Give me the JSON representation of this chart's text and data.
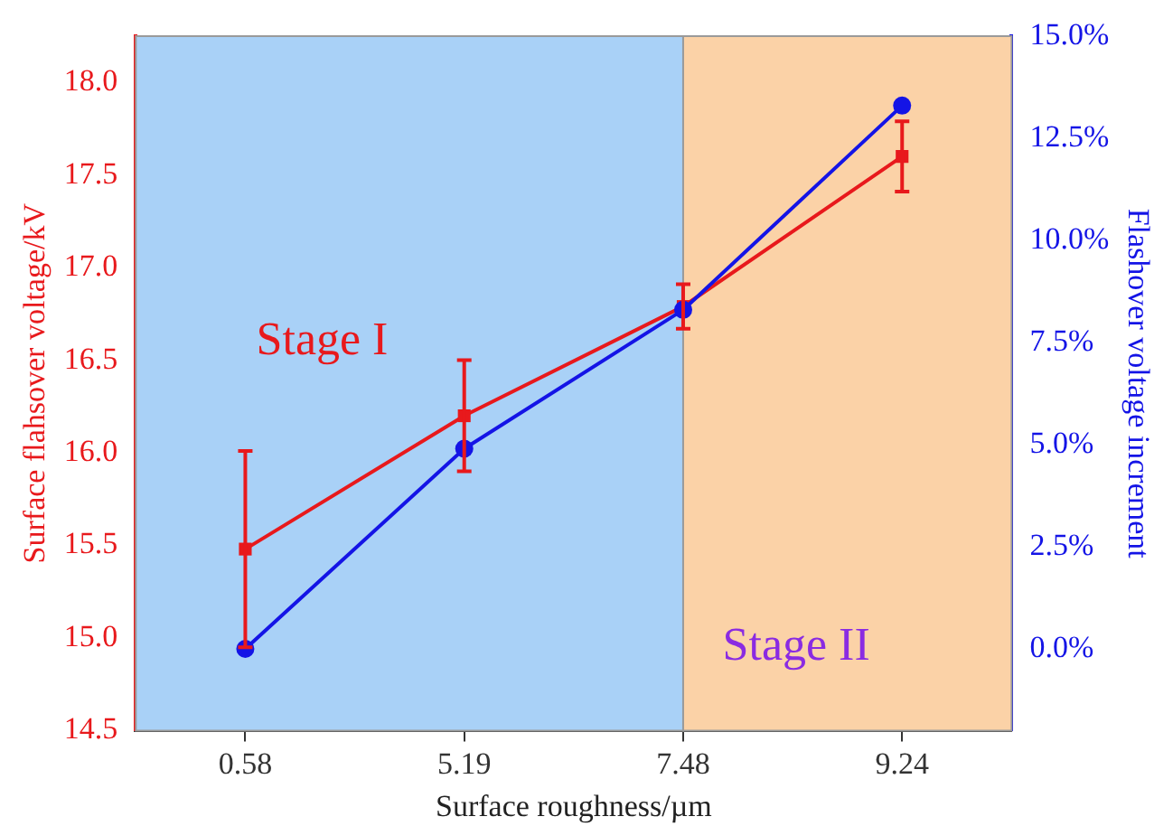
{
  "chart_data": {
    "type": "line",
    "xlabel": "Surface roughness/µm",
    "ylabel": "Surface flahsover voltage/kV",
    "y2label": "Flashover voltage increment",
    "categories": [
      "0.58",
      "5.19",
      "7.48",
      "9.24"
    ],
    "series": [
      {
        "color": "#e8191c",
        "marker": "square",
        "values": [
          15.48,
          16.2,
          16.79,
          17.6
        ],
        "errors": [
          0.53,
          0.3,
          0.12,
          0.19
        ]
      },
      {
        "color": "#1414e6",
        "marker": "circle",
        "axis": "y2",
        "values": [
          0.0,
          4.9,
          8.3,
          13.3
        ]
      }
    ],
    "ylim": [
      14.5,
      18.25
    ],
    "yticks": [
      14.5,
      {
        "value": 15,
        "label": "15.0"
      },
      15.5,
      {
        "value": 16,
        "label": "16.0"
      },
      16.5,
      {
        "value": 17,
        "label": "17.0"
      },
      17.5,
      {
        "value": 18,
        "label": "18.0"
      }
    ],
    "y2lim": [
      -2,
      15
    ],
    "y2ticks": [
      {
        "value": 0,
        "label": "0.0%"
      },
      {
        "value": 2.5,
        "label": "2.5%"
      },
      {
        "value": 5,
        "label": "5.0%"
      },
      {
        "value": 7.5,
        "label": "7.5%"
      },
      {
        "value": 10,
        "label": "10.0%"
      },
      {
        "value": 12.5,
        "label": "12.5%"
      },
      {
        "value": 15,
        "label": "15.0%"
      }
    ],
    "bands": [
      {
        "axis": "x",
        "from": "0.58",
        "to": "7.48",
        "label": "Stage I",
        "color": "#a9d1f7"
      },
      {
        "axis": "x",
        "from": "7.48",
        "to": "9.24",
        "label": "Stage II",
        "color": "#fbd2a7"
      }
    ],
    "grid": false,
    "legend": false
  }
}
